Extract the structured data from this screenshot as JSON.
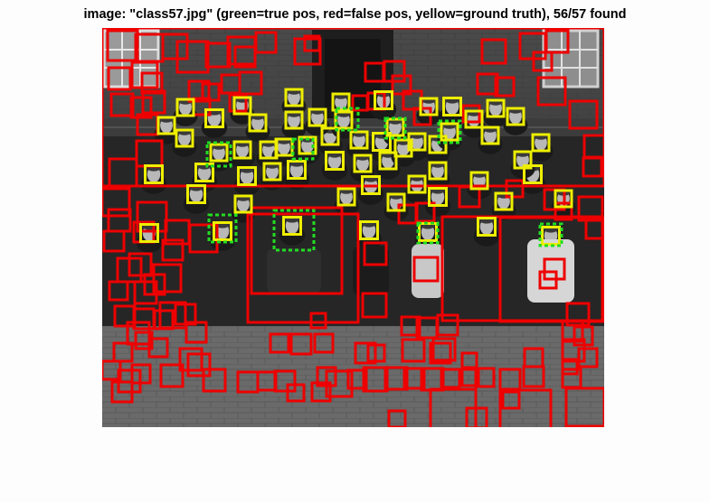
{
  "figure": {
    "title": "image: \"class57.jpg\" (green=true pos, red=false pos, yellow=ground truth), 56/57 found"
  },
  "colors": {
    "true_positive": "#22dd22",
    "false_positive": "#ee0000",
    "ground_truth": "#eeee00",
    "background": "#fdfdfd"
  }
}
